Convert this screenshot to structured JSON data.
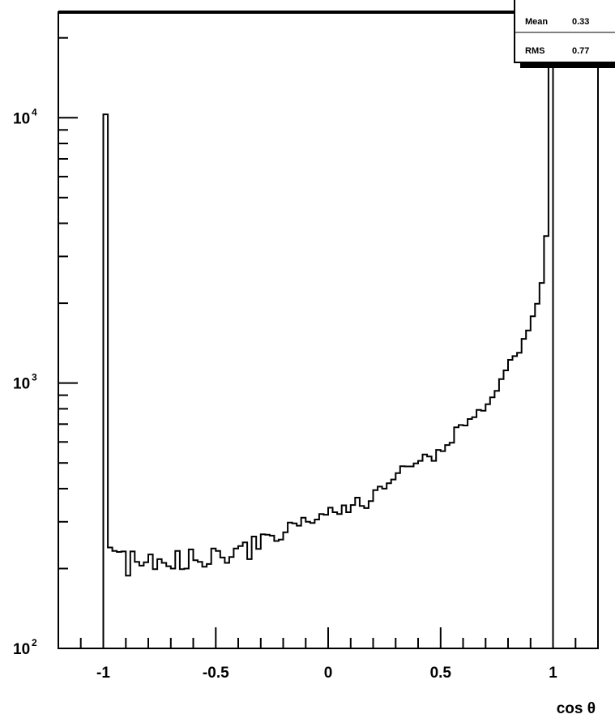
{
  "chart_data": {
    "type": "histogram",
    "xlabel": "cos θ",
    "ylabel": "",
    "xlim": [
      -1.2,
      1.2
    ],
    "ylim": [
      100,
      25000
    ],
    "yscale": "log",
    "x_ticks": [
      {
        "value": -1,
        "label": "-1"
      },
      {
        "value": -0.5,
        "label": "-0.5"
      },
      {
        "value": 0,
        "label": "0"
      },
      {
        "value": 0.5,
        "label": "0.5"
      },
      {
        "value": 1,
        "label": "1"
      }
    ],
    "y_ticks": [
      {
        "value": 100,
        "base": "10",
        "exponent": "2"
      },
      {
        "value": 1000,
        "base": "10",
        "exponent": "3"
      },
      {
        "value": 10000,
        "base": "10",
        "exponent": "4"
      }
    ],
    "bin_edges_start": -1.0,
    "bin_width": 0.02,
    "values": [
      10300,
      240,
      233,
      231,
      232,
      188,
      232,
      212,
      205,
      211,
      226,
      199,
      217,
      210,
      204,
      200,
      233,
      199,
      200,
      236,
      215,
      212,
      203,
      208,
      238,
      233,
      220,
      210,
      221,
      238,
      243,
      251,
      217,
      264,
      237,
      269,
      268,
      266,
      254,
      257,
      274,
      298,
      296,
      290,
      311,
      300,
      297,
      306,
      321,
      319,
      339,
      326,
      321,
      346,
      326,
      347,
      370,
      344,
      338,
      359,
      395,
      407,
      400,
      419,
      433,
      458,
      486,
      485,
      485,
      498,
      509,
      538,
      529,
      509,
      560,
      554,
      584,
      596,
      681,
      695,
      692,
      732,
      744,
      792,
      787,
      832,
      883,
      935,
      1035,
      1116,
      1223,
      1263,
      1301,
      1468,
      1578,
      1785,
      1990,
      2385,
      3580,
      15800
    ],
    "stats": [
      {
        "label": "Mean",
        "value": "0.33"
      },
      {
        "label": "RMS",
        "value": "0.77"
      }
    ]
  }
}
